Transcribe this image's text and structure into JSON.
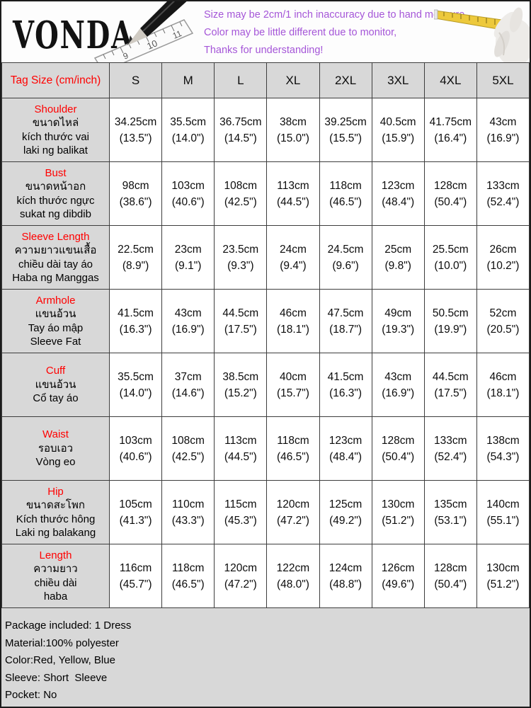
{
  "banner": {
    "brand": "VONDA",
    "notes": [
      "Size may be 2cm/1 inch inaccuracy due to hand measure,",
      "Color may be little different due to monitor,",
      "Thanks for understanding!"
    ],
    "note_color": "#a556d8",
    "ruler_numbers": [
      "9",
      "10",
      "11"
    ]
  },
  "icons": {
    "pencil": "pencil-icon",
    "ruler": "ruler-icon",
    "hand_tape": "hand-with-measuring-tape-icon"
  },
  "size_chart": {
    "header": [
      "Tag Size (cm/inch)",
      "S",
      "M",
      "L",
      "XL",
      "2XL",
      "3XL",
      "4XL",
      "5XL"
    ],
    "rows": [
      {
        "name": "Shoulder",
        "translations": [
          "ขนาดไหล่",
          "kích thước vai",
          "laki ng balikat"
        ],
        "cm": [
          "34.25cm",
          "35.5cm",
          "36.75cm",
          "38cm",
          "39.25cm",
          "40.5cm",
          "41.75cm",
          "43cm"
        ],
        "inch": [
          "(13.5\")",
          "(14.0\")",
          "(14.5\")",
          "(15.0\")",
          "(15.5\")",
          "(15.9\")",
          "(16.4\")",
          "(16.9\")"
        ]
      },
      {
        "name": "Bust",
        "translations": [
          "ขนาดหน้าอก",
          "kích thước ngực",
          "sukat ng dibdib"
        ],
        "cm": [
          "98cm",
          "103cm",
          "108cm",
          "113cm",
          "118cm",
          "123cm",
          "128cm",
          "133cm"
        ],
        "inch": [
          "(38.6\")",
          "(40.6\")",
          "(42.5\")",
          "(44.5\")",
          "(46.5\")",
          "(48.4\")",
          "(50.4\")",
          "(52.4\")"
        ]
      },
      {
        "name": "Sleeve Length",
        "translations": [
          "ความยาวแขนเสื้อ",
          "chiều dài tay áo",
          "Haba ng Manggas"
        ],
        "cm": [
          "22.5cm",
          "23cm",
          "23.5cm",
          "24cm",
          "24.5cm",
          "25cm",
          "25.5cm",
          "26cm"
        ],
        "inch": [
          "(8.9\")",
          "(9.1\")",
          "(9.3\")",
          "(9.4\")",
          "(9.6\")",
          "(9.8\")",
          "(10.0\")",
          "(10.2\")"
        ]
      },
      {
        "name": "Armhole",
        "translations": [
          "แขนอ้วน",
          "Tay áo mập",
          "Sleeve Fat"
        ],
        "cm": [
          "41.5cm",
          "43cm",
          "44.5cm",
          "46cm",
          "47.5cm",
          "49cm",
          "50.5cm",
          "52cm"
        ],
        "inch": [
          "(16.3\")",
          "(16.9\")",
          "(17.5\")",
          "(18.1\")",
          "(18.7\")",
          "(19.3\")",
          "(19.9\")",
          "(20.5\")"
        ]
      },
      {
        "name": "Cuff",
        "translations": [
          "แขนอ้วน",
          "Cổ tay áo"
        ],
        "cm": [
          "35.5cm",
          "37cm",
          "38.5cm",
          "40cm",
          "41.5cm",
          "43cm",
          "44.5cm",
          "46cm"
        ],
        "inch": [
          "(14.0\")",
          "(14.6\")",
          "(15.2\")",
          "(15.7\")",
          "(16.3\")",
          "(16.9\")",
          "(17.5\")",
          "(18.1\")"
        ]
      },
      {
        "name": "Waist",
        "translations": [
          "รอบเอว",
          "Vòng eo"
        ],
        "cm": [
          "103cm",
          "108cm",
          "113cm",
          "118cm",
          "123cm",
          "128cm",
          "133cm",
          "138cm"
        ],
        "inch": [
          "(40.6\")",
          "(42.5\")",
          "(44.5\")",
          "(46.5\")",
          "(48.4\")",
          "(50.4\")",
          "(52.4\")",
          "(54.3\")"
        ]
      },
      {
        "name": "Hip",
        "translations": [
          "ขนาดสะโพก",
          "Kích thước hông",
          "Laki ng balakang"
        ],
        "cm": [
          "105cm",
          "110cm",
          "115cm",
          "120cm",
          "125cm",
          "130cm",
          "135cm",
          "140cm"
        ],
        "inch": [
          "(41.3\")",
          "(43.3\")",
          "(45.3\")",
          "(47.2\")",
          "(49.2\")",
          "(51.2\")",
          "(53.1\")",
          "(55.1\")"
        ]
      },
      {
        "name": "Length",
        "translations": [
          "ความยาว",
          "chiều dài",
          "haba"
        ],
        "cm": [
          "116cm",
          "118cm",
          "120cm",
          "122cm",
          "124cm",
          "126cm",
          "128cm",
          "130cm"
        ],
        "inch": [
          "(45.7\")",
          "(46.5\")",
          "(47.2\")",
          "(48.0\")",
          "(48.8\")",
          "(49.6\")",
          "(50.4\")",
          "(51.2\")"
        ]
      }
    ]
  },
  "footer": {
    "lines": [
      "Package included: 1 Dress",
      "Material:100% polyester",
      "Color:Red, Yellow, Blue",
      "Sleeve: Short  Sleeve",
      "Pocket: No"
    ]
  },
  "colors": {
    "label_red": "#ff0000",
    "cell_gray": "#d8d8d8",
    "grid": "#3d3d3d",
    "note_purple": "#a556d8",
    "tape_yellow": "#edc93c"
  }
}
